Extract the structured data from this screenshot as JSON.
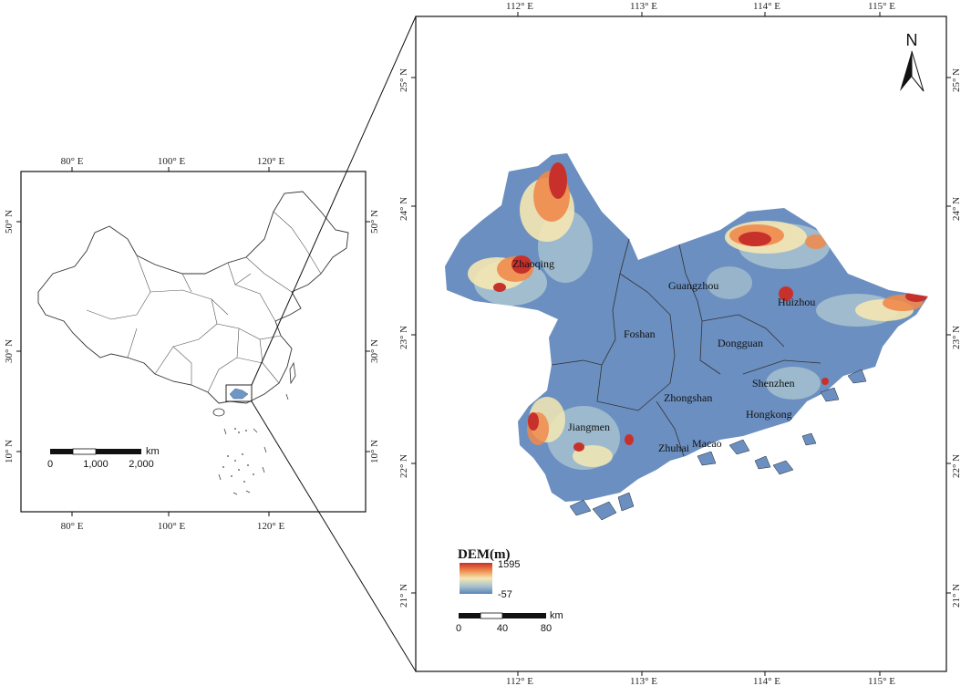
{
  "overview_map": {
    "top_lon_labels": [
      "80° E",
      "100° E",
      "120° E"
    ],
    "bottom_lon_labels": [
      "80° E",
      "100° E",
      "120° E"
    ],
    "left_lat_labels": [
      "50° N",
      "30° N",
      "10° N"
    ],
    "right_lat_labels": [
      "50° N",
      "30° N",
      "10° N"
    ],
    "scale_bar": {
      "labels": [
        "0",
        "1,000",
        "2,000"
      ],
      "unit": "km"
    }
  },
  "detail_map": {
    "top_lon_labels": [
      "112° E",
      "113° E",
      "114° E",
      "115° E"
    ],
    "bottom_lon_labels": [
      "112° E",
      "113° E",
      "114° E",
      "115° E"
    ],
    "left_lat_labels": [
      "25° N",
      "24° N",
      "23° N",
      "22° N",
      "21° N"
    ],
    "right_lat_labels": [
      "25° N",
      "24° N",
      "23° N",
      "22° N",
      "21° N"
    ],
    "north_arrow": "N",
    "cities": [
      "Zhaoqing",
      "Guangzhou",
      "Huizhou",
      "Foshan",
      "Dongguan",
      "Shenzhen",
      "Zhongshan",
      "Hongkong",
      "Jiangmen",
      "Zhuhai",
      "Macao"
    ],
    "legend": {
      "title": "DEM(m)",
      "max": "1595",
      "min": "-57",
      "colors": [
        "#c8312b",
        "#f08a4b",
        "#f5e7b3",
        "#a9c3cf",
        "#5b84b8"
      ]
    },
    "scale_bar": {
      "labels": [
        "0",
        "40",
        "80"
      ],
      "unit": "km"
    }
  }
}
